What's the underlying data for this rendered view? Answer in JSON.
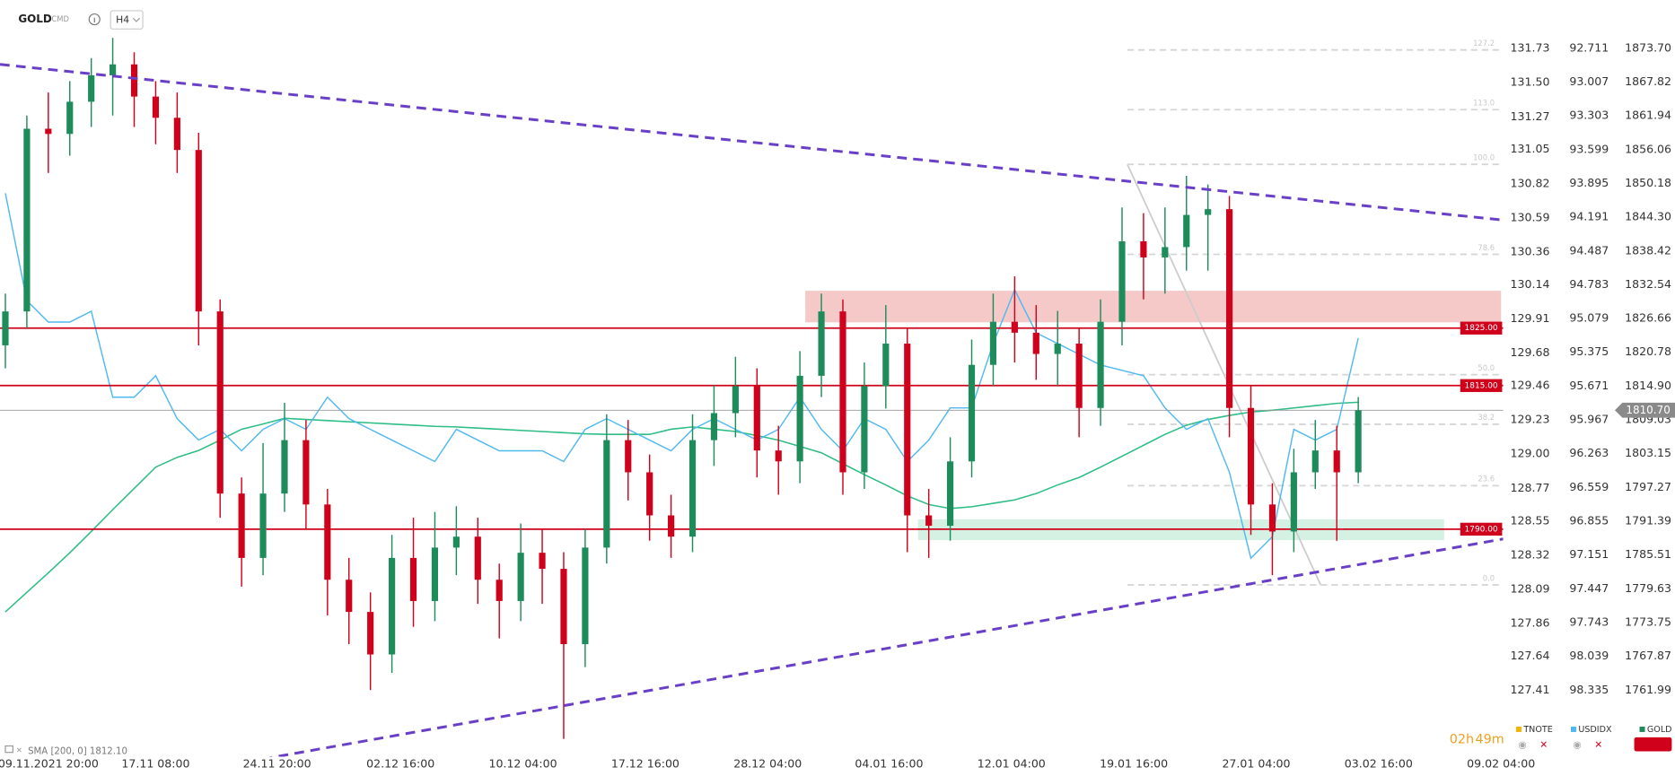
{
  "header": {
    "symbol": "GOLD",
    "market": "CMD",
    "timeframe": "H4"
  },
  "chart_data": {
    "type": "candlestick",
    "xlim": [
      -0.25,
      69.75
    ],
    "xticks": [
      {
        "value": 2,
        "label": "09.11.2021 20:00"
      },
      {
        "value": 7,
        "label": "17.11 08:00"
      },
      {
        "value": 12.65,
        "label": "24.11 20:00"
      },
      {
        "value": 18.4,
        "label": "02.12 16:00"
      },
      {
        "value": 24.1,
        "label": "10.12 04:00"
      },
      {
        "value": 29.8,
        "label": "17.12 16:00"
      },
      {
        "value": 35.5,
        "label": "28.12 04:00"
      },
      {
        "value": 41.15,
        "label": "04.01 16:00"
      },
      {
        "value": 46.85,
        "label": "12.01 04:00"
      },
      {
        "value": 52.55,
        "label": "19.01 16:00"
      },
      {
        "value": 58.25,
        "label": "27.01 04:00"
      },
      {
        "value": 63.95,
        "label": "03.02 16:00"
      },
      {
        "value": 69.65,
        "label": "09.02 04:00"
      }
    ],
    "ylim": [
      1751.34,
      1876.5
    ],
    "yticks": [
      {
        "value": 1873.7,
        "label": "1873.70"
      },
      1867.82,
      1861.94,
      1856.06,
      1850.18,
      {
        "value": 1844.3,
        "label": "1844.30"
      },
      1838.42,
      1832.54,
      1826.66,
      1820.78,
      {
        "value": 1814.9,
        "label": "1814.90"
      },
      1809.03,
      1803.15,
      1797.27,
      1791.39,
      1785.51,
      1779.63,
      1773.75,
      1767.87,
      1761.99
    ],
    "y2lim": [
      98.871,
      92.57
    ],
    "y2ticks": [
      92.711,
      93.007,
      93.303,
      93.599,
      93.895,
      94.191,
      94.487,
      94.783,
      95.079,
      95.375,
      95.671,
      95.967,
      96.263,
      96.559,
      96.855,
      97.151,
      97.447,
      97.743,
      98.039,
      98.335
    ],
    "y3lim": [
      127.0,
      131.84
    ],
    "y3ticks": [
      131.73,
      {
        "value": 131.5,
        "label": "131.50"
      },
      131.27,
      131.05,
      130.82,
      130.59,
      130.36,
      130.14,
      129.91,
      129.68,
      129.46,
      129.23,
      {
        "value": 129,
        "label": "129.00"
      },
      128.77,
      128.55,
      128.32,
      128.09,
      127.86,
      127.64,
      127.41
    ],
    "series": [
      {
        "name": "TNOTE",
        "color": "#f5b400",
        "axis": "y3",
        "values": []
      },
      {
        "name": "USDIDX",
        "color": "#4fb9f0",
        "axis": "y2",
        "values": [
          93.981,
          94.921,
          95.11,
          95.11,
          95.015,
          95.768,
          95.768,
          95.58,
          95.956,
          96.144,
          96.05,
          96.238,
          96.05,
          95.956,
          96.05,
          95.768,
          95.956,
          96.05,
          96.144,
          96.238,
          96.332,
          96.05,
          96.144,
          96.238,
          96.238,
          96.238,
          96.332,
          96.05,
          95.956,
          96.05,
          96.144,
          96.238,
          96.05,
          95.956,
          96.05,
          96.144,
          96.05,
          95.768,
          96.05,
          96.238,
          95.956,
          96.05,
          96.332,
          96.144,
          95.862,
          95.862,
          95.298,
          94.827,
          95.204,
          95.298,
          95.392,
          95.486,
          95.533,
          95.58,
          95.862,
          96.05,
          95.956,
          96.426,
          97.179,
          96.991,
          96.05,
          96.144,
          96.05,
          95.251
        ]
      },
      {
        "name": "GOLD",
        "color": "#1e8c5a",
        "down_color": "#d0021b",
        "open": [
          1822.0,
          1827.9,
          1859.7,
          1858.8,
          1864.4,
          1869.0,
          1870.9,
          1865.3,
          1861.6,
          1856.0,
          1827.9,
          1796.2,
          1785.0,
          1796.2,
          1805.5,
          1794.3,
          1781.2,
          1775.6,
          1768.2,
          1785.0,
          1777.5,
          1786.8,
          1788.7,
          1781.2,
          1777.5,
          1785.9,
          1783.1,
          1770.0,
          1786.8,
          1805.5,
          1799.9,
          1792.4,
          1788.7,
          1805.5,
          1810.2,
          1814.9,
          1803.7,
          1801.8,
          1816.7,
          1827.9,
          1799.9,
          1814.9,
          1822.3,
          1792.4,
          1790.6,
          1801.8,
          1818.6,
          1826.1,
          1824.2,
          1820.5,
          1822.3,
          1811.1,
          1826.1,
          1840.1,
          1837.3,
          1839.1,
          1844.7,
          1845.7,
          1811.1,
          1794.3,
          1789.6,
          1799.9,
          1803.7,
          1799.9
        ],
        "high": [
          1831,
          1862,
          1866,
          1868,
          1872,
          1875.5,
          1873,
          1868,
          1866,
          1859,
          1830,
          1799,
          1805,
          1812,
          1809,
          1797,
          1785,
          1779,
          1789,
          1792,
          1793,
          1794,
          1792,
          1784,
          1791,
          1790,
          1786,
          1790,
          1810,
          1809,
          1803,
          1796,
          1810,
          1815,
          1820,
          1818,
          1808,
          1821,
          1831,
          1830,
          1819,
          1829,
          1825,
          1797,
          1806,
          1823,
          1831,
          1834,
          1829,
          1828,
          1825,
          1830,
          1846,
          1845,
          1846,
          1851.5,
          1850,
          1848,
          1815,
          1798,
          1804,
          1809,
          1808,
          1813
        ],
        "low": [
          1818,
          1825,
          1852,
          1855,
          1860,
          1862,
          1860,
          1857,
          1852,
          1822,
          1792,
          1780,
          1782,
          1793,
          1790,
          1775,
          1770,
          1762,
          1765,
          1773,
          1774,
          1782,
          1777,
          1771,
          1774,
          1777,
          1753.5,
          1766,
          1784,
          1795,
          1788,
          1785,
          1786,
          1801,
          1806,
          1799,
          1796,
          1798,
          1813,
          1796,
          1797,
          1811,
          1786,
          1785,
          1788,
          1799,
          1815,
          1819,
          1816,
          1815,
          1806,
          1808,
          1822,
          1830,
          1831,
          1835,
          1835,
          1806,
          1789,
          1782,
          1786,
          1797,
          1788,
          1798
        ],
        "close": [
          1827.9,
          1859.7,
          1858.8,
          1864.4,
          1869.0,
          1870.9,
          1865.3,
          1861.6,
          1856.0,
          1827.9,
          1796.2,
          1785.0,
          1796.2,
          1805.5,
          1794.3,
          1781.2,
          1775.6,
          1768.2,
          1785.0,
          1777.5,
          1786.8,
          1788.7,
          1781.2,
          1777.5,
          1785.9,
          1783.1,
          1770.0,
          1786.8,
          1805.5,
          1799.9,
          1792.4,
          1788.7,
          1805.5,
          1810.2,
          1814.9,
          1803.7,
          1801.8,
          1816.7,
          1827.9,
          1799.9,
          1814.9,
          1822.3,
          1792.4,
          1790.6,
          1801.8,
          1818.6,
          1826.1,
          1824.2,
          1820.5,
          1822.3,
          1811.1,
          1826.1,
          1840.1,
          1837.3,
          1839.1,
          1844.7,
          1845.7,
          1811.1,
          1794.3,
          1789.6,
          1799.9,
          1803.7,
          1799.9,
          1810.7
        ]
      }
    ],
    "sma": {
      "label": "SMA [200, 0] 1812.10",
      "color": "#2ebd85",
      "values": [
        1775.6,
        1779.0,
        1782.4,
        1785.9,
        1789.6,
        1793.4,
        1797.1,
        1800.8,
        1802.5,
        1803.7,
        1805.5,
        1807.4,
        1808.3,
        1809.3,
        1809.1,
        1808.9,
        1808.7,
        1808.5,
        1808.3,
        1808.1,
        1807.9,
        1807.8,
        1807.6,
        1807.4,
        1807.2,
        1807.0,
        1806.8,
        1806.6,
        1806.5,
        1806.5,
        1806.5,
        1807.4,
        1807.8,
        1807.4,
        1807.0,
        1806.3,
        1805.5,
        1804.4,
        1803.3,
        1801.4,
        1799.5,
        1797.7,
        1795.8,
        1794.3,
        1793.6,
        1793.9,
        1794.5,
        1795.1,
        1796.2,
        1797.7,
        1799.0,
        1800.8,
        1802.7,
        1804.6,
        1806.5,
        1808.1,
        1809.1,
        1809.8,
        1810.4,
        1810.7,
        1811.1,
        1811.5,
        1811.9,
        1812.1
      ]
    },
    "levels": [
      {
        "value": 1825,
        "label": "1825.00"
      },
      {
        "value": 1815,
        "label": "1815.00"
      },
      {
        "value": 1790,
        "label": "1790.00"
      }
    ],
    "level_color": "#d0021b",
    "last_price": {
      "value": 1810.7,
      "label": "1810.70"
    },
    "zones": [
      {
        "from": 1826,
        "to": 1831.5,
        "x_start": 37.25,
        "x_end": 69.65,
        "color": "#f4bcbc"
      },
      {
        "from": 1788.1,
        "to": 1791.7,
        "x_start": 42.5,
        "x_end": 67,
        "color": "#c9eedd"
      }
    ],
    "trendlines": [
      {
        "x": [
          -0.25,
          69.75
        ],
        "y": [
          1870.9,
          1843.8
        ]
      },
      {
        "x": [
          11.25,
          69.75
        ],
        "y": [
          1749.5,
          1788.3
        ]
      }
    ],
    "trend_color": "#6a3fc8",
    "fib": {
      "x": [
        52.25,
        61.25
      ],
      "high": 1853.5,
      "low": 1780.3,
      "levels": [
        {
          "value": 0,
          "label": "0.0"
        },
        23.6,
        38.2,
        {
          "value": 50,
          "label": "50.0"
        },
        78.6,
        {
          "value": 100,
          "label": "100.0"
        },
        {
          "value": 113,
          "label": "113.0"
        },
        127.2
      ]
    }
  },
  "countdown": {
    "hours": "02h",
    "minutes": "49m"
  }
}
